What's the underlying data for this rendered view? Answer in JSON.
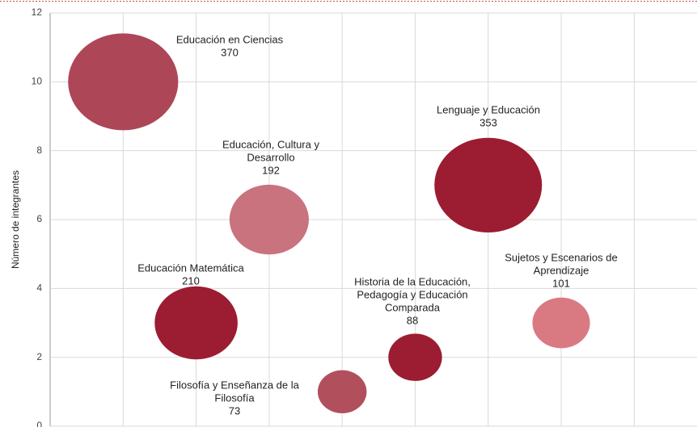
{
  "chart_data": {
    "type": "bubble",
    "ylabel": "Número de integrantes",
    "x": [
      1,
      2,
      3,
      4,
      5,
      6,
      7
    ],
    "y": [
      10,
      3,
      6,
      1,
      2,
      7,
      3
    ],
    "sizes": [
      370,
      210,
      192,
      73,
      88,
      353,
      101
    ],
    "labels": [
      [
        "Educación en Ciencias"
      ],
      [
        "Educación Matemática"
      ],
      [
        "Educación, Cultura y",
        "Desarrollo"
      ],
      [
        "Filosofía y Enseñanza de la",
        "Filosofía"
      ],
      [
        "Historia de la Educación,",
        "Pedagogía y Educación",
        "Comparada"
      ],
      [
        "Lenguaje y Educación"
      ],
      [
        "Sujetos y Escenarios de",
        "Aprendizaje"
      ]
    ],
    "colors": [
      "#ad4757",
      "#9c1c31",
      "#c9737e",
      "#b24f5d",
      "#9c1c31",
      "#9c1c31",
      "#d97a83"
    ],
    "xlim": [
      0,
      8.86
    ],
    "xticks": [
      0,
      1,
      2,
      3,
      4,
      5,
      6,
      7,
      8
    ],
    "ylim": [
      0,
      12
    ],
    "yticks": [
      0,
      2,
      4,
      6,
      8,
      10,
      12
    ],
    "grid": true
  }
}
